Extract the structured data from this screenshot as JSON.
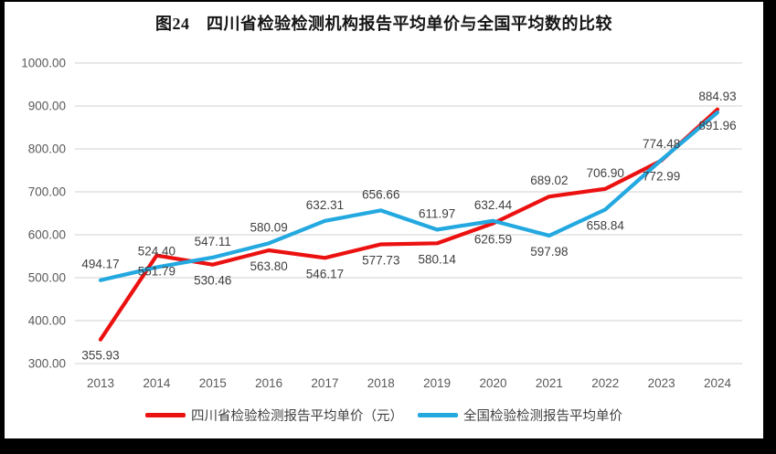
{
  "page": {
    "frame_color": "#000000",
    "paper_color": "#ffffff"
  },
  "title": "图24　四川省检验检测机构报告平均单价与全国平均数的比较",
  "colors": {
    "gridline": "#d9d9d9",
    "tick_label": "#595959",
    "data_label": "#3f3f3f",
    "series_red": "#ec1111",
    "series_blue": "#23a8e0"
  },
  "chart_data": {
    "type": "line",
    "title": "图24　四川省检验检测机构报告平均单价与全国平均数的比较",
    "xlabel": "",
    "ylabel": "",
    "categories": [
      "2013",
      "2014",
      "2015",
      "2016",
      "2017",
      "2018",
      "2019",
      "2020",
      "2021",
      "2022",
      "2023",
      "2024"
    ],
    "series": [
      {
        "name": "四川省检验检测报告平均单价（元）",
        "color": "#ec1111",
        "values": [
          355.93,
          551.79,
          530.46,
          563.8,
          546.17,
          577.73,
          580.14,
          626.59,
          689.02,
          706.9,
          772.99,
          891.96
        ],
        "label_side": [
          "below",
          "below",
          "below",
          "below",
          "below",
          "below",
          "below",
          "below",
          "above",
          "above",
          "below",
          "below"
        ]
      },
      {
        "name": "全国检验检测报告平均单价",
        "color": "#23a8e0",
        "values": [
          494.17,
          524.4,
          547.11,
          580.09,
          632.31,
          656.66,
          611.97,
          632.44,
          597.98,
          658.84,
          774.48,
          884.93
        ],
        "label_side": [
          "above",
          "above",
          "above",
          "above",
          "above",
          "above",
          "above",
          "above",
          "below",
          "below",
          "above",
          "above"
        ]
      }
    ],
    "ylim": [
      300,
      1000
    ],
    "ytick_step": 100,
    "yticks": [
      "1000.00",
      "900.00",
      "800.00",
      "700.00",
      "600.00",
      "500.00",
      "400.00",
      "300.00"
    ],
    "grid": true,
    "legend_position": "bottom",
    "value_decimals": 2
  }
}
